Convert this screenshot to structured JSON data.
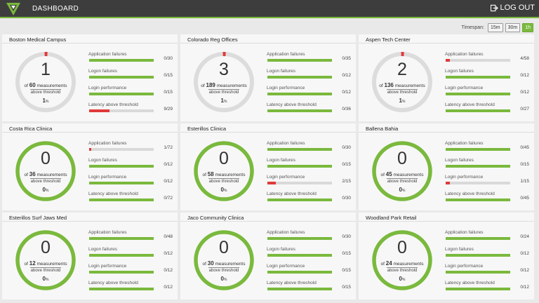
{
  "header": {
    "title": "DASHBOARD",
    "logout_label": "LOG OUT"
  },
  "timespan": {
    "label": "Timespan:",
    "options": [
      "15m",
      "30m",
      "1h"
    ],
    "selected": "1h"
  },
  "colors": {
    "good": "#7ab93d",
    "bad": "#e03a3a",
    "track": "#d9d9d9",
    "neutral_ring": "#dcdcdc",
    "header_bg": "#3d3d3d"
  },
  "sites": [
    {
      "name": "Boston Medical Campus",
      "count": "1",
      "measurements": "60",
      "measurements_suffix": "measurements",
      "above_threshold": "above threshold",
      "pct": "1",
      "pct_unit": "%",
      "status": "warn",
      "metrics": [
        {
          "label": "Application failures",
          "value": "0/30",
          "failed": 0,
          "total": 30
        },
        {
          "label": "Logon failures",
          "value": "0/15",
          "failed": 0,
          "total": 15
        },
        {
          "label": "Login performance",
          "value": "0/15",
          "failed": 0,
          "total": 15
        },
        {
          "label": "Latency above threshold",
          "value": "9/29",
          "failed": 9,
          "total": 29
        }
      ]
    },
    {
      "name": "Colorado Reg Offices",
      "count": "3",
      "measurements": "189",
      "measurements_suffix": "measurements",
      "above_threshold": "above threshold",
      "pct": "1",
      "pct_unit": "%",
      "status": "warn",
      "metrics": [
        {
          "label": "Application failures",
          "value": "0/35",
          "failed": 0,
          "total": 35
        },
        {
          "label": "Logon failures",
          "value": "0/12",
          "failed": 0,
          "total": 12
        },
        {
          "label": "Login performance",
          "value": "0/12",
          "failed": 0,
          "total": 12
        },
        {
          "label": "Latency above threshold",
          "value": "0/36",
          "failed": 0,
          "total": 36
        }
      ]
    },
    {
      "name": "Aspen Tech Center",
      "count": "2",
      "measurements": "136",
      "measurements_suffix": "measurements",
      "above_threshold": "above threshold",
      "pct": "1",
      "pct_unit": "%",
      "status": "warn",
      "metrics": [
        {
          "label": "Application failures",
          "value": "4/58",
          "failed": 4,
          "total": 58
        },
        {
          "label": "Logon failures",
          "value": "0/12",
          "failed": 0,
          "total": 12
        },
        {
          "label": "Login performance",
          "value": "0/12",
          "failed": 0,
          "total": 12
        },
        {
          "label": "Latency above threshold",
          "value": "0/27",
          "failed": 0,
          "total": 27
        }
      ]
    },
    {
      "name": "Costa Rica Clinica",
      "count": "0",
      "measurements": "36",
      "measurements_suffix": "measurements",
      "above_threshold": "above threshold",
      "pct": "0",
      "pct_unit": "%",
      "status": "ok",
      "metrics": [
        {
          "label": "Application failures",
          "value": "1/72",
          "failed": 1,
          "total": 72
        },
        {
          "label": "Logon failures",
          "value": "0/12",
          "failed": 0,
          "total": 12
        },
        {
          "label": "Login performance",
          "value": "0/12",
          "failed": 0,
          "total": 12
        },
        {
          "label": "Latency above threshold",
          "value": "0/72",
          "failed": 0,
          "total": 72
        }
      ]
    },
    {
      "name": "Esterillos Clinica",
      "count": "0",
      "measurements": "58",
      "measurements_suffix": "measurements",
      "above_threshold": "above threshold",
      "pct": "0",
      "pct_unit": "%",
      "status": "ok",
      "metrics": [
        {
          "label": "Application failures",
          "value": "0/30",
          "failed": 0,
          "total": 30
        },
        {
          "label": "Logon failures",
          "value": "0/15",
          "failed": 0,
          "total": 15
        },
        {
          "label": "Login performance",
          "value": "2/15",
          "failed": 2,
          "total": 15
        },
        {
          "label": "Latency above threshold",
          "value": "0/30",
          "failed": 0,
          "total": 30
        }
      ]
    },
    {
      "name": "Ballena Bahia",
      "count": "0",
      "measurements": "45",
      "measurements_suffix": "measurements",
      "above_threshold": "above threshold",
      "pct": "0",
      "pct_unit": "%",
      "status": "ok",
      "metrics": [
        {
          "label": "Application failures",
          "value": "0/45",
          "failed": 0,
          "total": 45
        },
        {
          "label": "Logon failures",
          "value": "0/15",
          "failed": 0,
          "total": 15
        },
        {
          "label": "Login performance",
          "value": "1/15",
          "failed": 1,
          "total": 15
        },
        {
          "label": "Latency above threshold",
          "value": "0/45",
          "failed": 0,
          "total": 45
        }
      ]
    },
    {
      "name": "Esterillos Surf Jaws Med",
      "count": "0",
      "measurements": "12",
      "measurements_suffix": "measurements",
      "above_threshold": "above threshold",
      "pct": "0",
      "pct_unit": "%",
      "status": "ok",
      "metrics": [
        {
          "label": "Application failures",
          "value": "0/48",
          "failed": 0,
          "total": 48
        },
        {
          "label": "Logon failures",
          "value": "0/12",
          "failed": 0,
          "total": 12
        },
        {
          "label": "Login performance",
          "value": "0/12",
          "failed": 0,
          "total": 12
        },
        {
          "label": "Latency above threshold",
          "value": "0/12",
          "failed": 0,
          "total": 12
        }
      ]
    },
    {
      "name": "Jaco Community Clinica",
      "count": "0",
      "measurements": "30",
      "measurements_suffix": "measurements",
      "above_threshold": "above threshold",
      "pct": "0",
      "pct_unit": "%",
      "status": "ok",
      "metrics": [
        {
          "label": "Application failures",
          "value": "0/30",
          "failed": 0,
          "total": 30
        },
        {
          "label": "Logon failures",
          "value": "0/15",
          "failed": 0,
          "total": 15
        },
        {
          "label": "Login performance",
          "value": "0/15",
          "failed": 0,
          "total": 15
        },
        {
          "label": "Latency above threshold",
          "value": "0/15",
          "failed": 0,
          "total": 15
        }
      ]
    },
    {
      "name": "Woodland Park Retail",
      "count": "0",
      "measurements": "24",
      "measurements_suffix": "measurements",
      "above_threshold": "above threshold",
      "pct": "0",
      "pct_unit": "%",
      "status": "ok",
      "metrics": [
        {
          "label": "Application failures",
          "value": "0/24",
          "failed": 0,
          "total": 24
        },
        {
          "label": "Logon failures",
          "value": "0/12",
          "failed": 0,
          "total": 12
        },
        {
          "label": "Login performance",
          "value": "0/12",
          "failed": 0,
          "total": 12
        },
        {
          "label": "Latency above threshold",
          "value": "0/12",
          "failed": 0,
          "total": 12
        }
      ]
    }
  ]
}
